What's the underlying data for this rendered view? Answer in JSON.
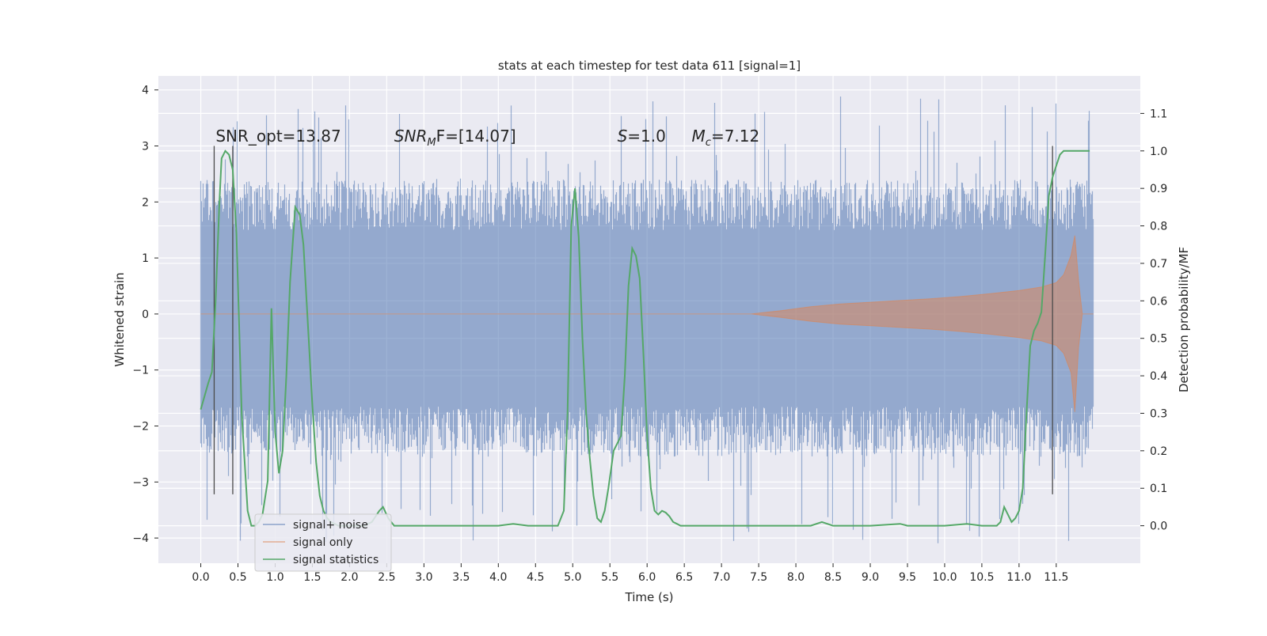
{
  "chart_data": {
    "type": "line",
    "title": "stats at each timestep for test data 611 [signal=1]",
    "xlabel": "Time (s)",
    "ylabel": "Whitened strain",
    "y2label": "Detection probability/MF",
    "xlim": [
      -0.57,
      12.63
    ],
    "ylim": [
      -4.45,
      4.25
    ],
    "y2lim": [
      -0.1,
      1.2
    ],
    "grid": true,
    "legend_position": "lower-left",
    "x_ticks": [
      "0.0",
      "0.5",
      "1.0",
      "1.5",
      "2.0",
      "2.5",
      "3.0",
      "3.5",
      "4.0",
      "4.5",
      "5.0",
      "5.5",
      "6.0",
      "6.5",
      "7.0",
      "7.5",
      "8.0",
      "8.5",
      "9.0",
      "9.5",
      "10.0",
      "10.5",
      "11.0",
      "11.5"
    ],
    "y_ticks": [
      "4",
      "3",
      "2",
      "1",
      "0",
      "−1",
      "−2",
      "−3",
      "−4"
    ],
    "y_tick_values": [
      4,
      3,
      2,
      1,
      0,
      -1,
      -2,
      -3,
      -4
    ],
    "y2_ticks": [
      "1.1",
      "1.0",
      "0.9",
      "0.8",
      "0.7",
      "0.6",
      "0.5",
      "0.4",
      "0.3",
      "0.2",
      "0.1",
      "0.0"
    ],
    "y2_tick_values": [
      1.1,
      1.0,
      0.9,
      0.8,
      0.7,
      0.6,
      0.5,
      0.4,
      0.3,
      0.2,
      0.1,
      0.0
    ],
    "annotations": [
      {
        "text": "SNR_opt=13.87",
        "x": 0.2,
        "y": 3.08
      },
      {
        "text": "SNR",
        "sub": "M",
        "rest": "F=[14.07]",
        "italic": true,
        "x": 2.6,
        "y": 3.08
      },
      {
        "text": "S",
        "rest": "=1.0",
        "italic": true,
        "x": 5.6,
        "y": 3.08
      },
      {
        "text": "M",
        "sub": "c",
        "rest": "=7.12",
        "italic": true,
        "x": 6.6,
        "y": 3.08
      }
    ],
    "vertical_markers": [
      0.18,
      0.43,
      11.45
    ],
    "series": [
      {
        "name": "signal+ noise",
        "color": "#4c72b0",
        "x_range": [
          0,
          12.0
        ],
        "envelope_low": -2.0,
        "envelope_high": 1.85,
        "spike_min": -4.1,
        "spike_max": 3.9
      },
      {
        "name": "signal only",
        "color": "#dd8452",
        "x": [
          0,
          7.4,
          7.8,
          8.2,
          8.6,
          9.0,
          9.4,
          9.8,
          10.2,
          10.6,
          11.0,
          11.3,
          11.5,
          11.6,
          11.7,
          11.75,
          11.8,
          11.85,
          12.0
        ],
        "upper": [
          0,
          0,
          0.06,
          0.13,
          0.18,
          0.21,
          0.24,
          0.27,
          0.31,
          0.36,
          0.42,
          0.48,
          0.56,
          0.7,
          1.05,
          1.4,
          0.6,
          0.0,
          0.0
        ],
        "lower": [
          0,
          0,
          -0.06,
          -0.13,
          -0.18,
          -0.21,
          -0.24,
          -0.27,
          -0.31,
          -0.36,
          -0.42,
          -0.48,
          -0.56,
          -0.7,
          -1.05,
          -1.75,
          -0.6,
          0.0,
          0.0
        ]
      },
      {
        "name": "signal statistics",
        "color": "#55a868",
        "axis": "right",
        "x": [
          0,
          0.1,
          0.15,
          0.2,
          0.25,
          0.28,
          0.33,
          0.38,
          0.43,
          0.48,
          0.55,
          0.63,
          0.68,
          0.73,
          0.78,
          0.83,
          0.9,
          0.95,
          1.0,
          1.05,
          1.1,
          1.15,
          1.2,
          1.27,
          1.33,
          1.38,
          1.45,
          1.5,
          1.55,
          1.6,
          1.65,
          1.7,
          1.75,
          1.8,
          1.85,
          1.9,
          2.0,
          2.1,
          2.2,
          2.3,
          2.4,
          2.45,
          2.52,
          2.6,
          2.8,
          3.0,
          3.5,
          4.0,
          4.2,
          4.4,
          4.6,
          4.8,
          4.88,
          4.93,
          4.98,
          5.03,
          5.08,
          5.13,
          5.18,
          5.23,
          5.28,
          5.33,
          5.38,
          5.43,
          5.48,
          5.55,
          5.6,
          5.65,
          5.7,
          5.75,
          5.8,
          5.85,
          5.9,
          5.95,
          6.0,
          6.05,
          6.1,
          6.15,
          6.2,
          6.25,
          6.3,
          6.35,
          6.4,
          6.45,
          6.5,
          6.55,
          6.6,
          6.7,
          6.8,
          7.0,
          7.5,
          8.0,
          8.2,
          8.35,
          8.5,
          9.0,
          9.4,
          9.5,
          9.6,
          10.0,
          10.3,
          10.5,
          10.7,
          10.75,
          10.8,
          10.85,
          10.9,
          10.95,
          11.0,
          11.05,
          11.1,
          11.15,
          11.2,
          11.25,
          11.3,
          11.35,
          11.4,
          11.45,
          11.5,
          11.55,
          11.6,
          11.7,
          11.8,
          11.9
        ],
        "values": [
          0.31,
          0.38,
          0.41,
          0.6,
          0.86,
          0.98,
          1.0,
          0.99,
          0.95,
          0.78,
          0.3,
          0.04,
          0.0,
          0.0,
          0.01,
          0.03,
          0.12,
          0.58,
          0.25,
          0.14,
          0.2,
          0.4,
          0.65,
          0.85,
          0.83,
          0.75,
          0.5,
          0.32,
          0.17,
          0.08,
          0.04,
          0.02,
          0.01,
          0.005,
          0.0,
          0.0,
          0.0,
          0.0,
          0.0,
          0.01,
          0.04,
          0.05,
          0.02,
          0.0,
          0.0,
          0.0,
          0.0,
          0.0,
          0.005,
          0.0,
          0.0,
          0.0,
          0.04,
          0.3,
          0.8,
          0.9,
          0.77,
          0.5,
          0.3,
          0.18,
          0.08,
          0.02,
          0.01,
          0.04,
          0.1,
          0.2,
          0.22,
          0.24,
          0.4,
          0.64,
          0.74,
          0.72,
          0.66,
          0.46,
          0.24,
          0.1,
          0.04,
          0.03,
          0.04,
          0.035,
          0.025,
          0.01,
          0.005,
          0.0,
          0.0,
          0.0,
          0.0,
          0.0,
          0.0,
          0.0,
          0.0,
          0.0,
          0.0,
          0.01,
          0.0,
          0.0,
          0.005,
          0.0,
          0.0,
          0.0,
          0.005,
          0.0,
          0.0,
          0.01,
          0.05,
          0.03,
          0.01,
          0.02,
          0.04,
          0.1,
          0.3,
          0.48,
          0.52,
          0.54,
          0.57,
          0.72,
          0.88,
          0.93,
          0.96,
          0.99,
          1.0,
          1.0,
          1.0,
          1.0
        ],
        "tail_x": [
          11.9,
          11.95
        ],
        "tail_values": [
          1.0,
          1.0
        ]
      }
    ]
  }
}
